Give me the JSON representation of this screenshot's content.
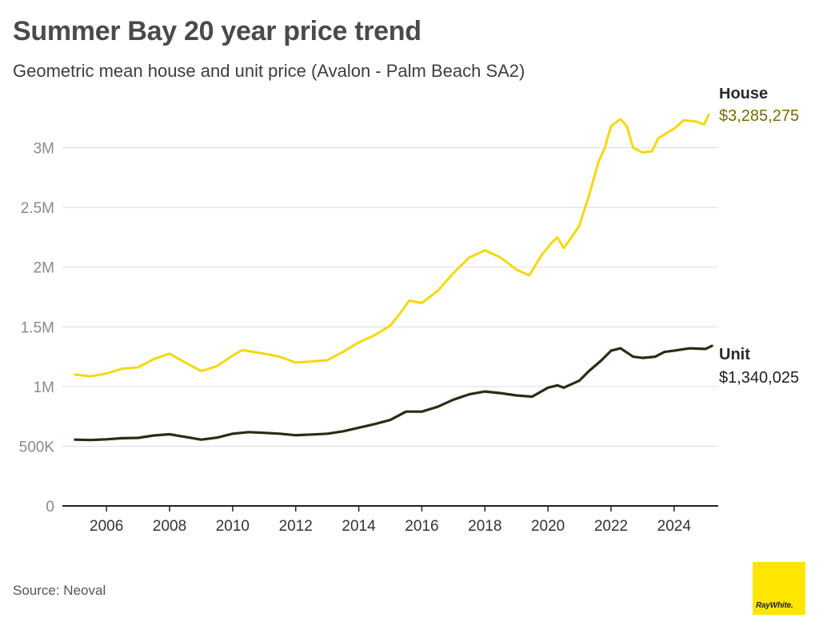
{
  "header": {
    "title": "Summer Bay 20 year price trend",
    "subtitle": "Geometric mean house and unit price (Avalon - Palm Beach SA2)"
  },
  "footer": {
    "source": "Source: Neoval",
    "logo_text": "RayWhite."
  },
  "colors": {
    "house": "#f5d90a",
    "unit": "#2e2a14",
    "house_value_text": "#7a6a00",
    "grid": "#dddddd",
    "axis": "#222222",
    "logo_bg": "#ffe600"
  },
  "chart_data": {
    "type": "line",
    "title": "Summer Bay 20 year price trend",
    "subtitle": "Geometric mean house and unit price (Avalon - Palm Beach SA2)",
    "xlim": [
      2004.6,
      2025.4
    ],
    "ylim": [
      0,
      3500000
    ],
    "x_ticks": [
      2006,
      2008,
      2010,
      2012,
      2014,
      2016,
      2018,
      2020,
      2022,
      2024
    ],
    "x_tick_labels": [
      "2006",
      "2008",
      "2010",
      "2012",
      "2014",
      "2016",
      "2018",
      "2020",
      "2022",
      "2024"
    ],
    "y_ticks": [
      0,
      500000,
      1000000,
      1500000,
      2000000,
      2500000,
      3000000
    ],
    "y_tick_labels": [
      "0",
      "500K",
      "1M",
      "1.5M",
      "2M",
      "2.5M",
      "3M"
    ],
    "grid": "horizontal",
    "series": [
      {
        "name": "House",
        "end_label": "$3,285,275",
        "color": "#f5d90a",
        "points": [
          [
            2005.0,
            1100000
          ],
          [
            2005.5,
            1085000
          ],
          [
            2006.0,
            1110000
          ],
          [
            2006.5,
            1150000
          ],
          [
            2007.0,
            1160000
          ],
          [
            2007.5,
            1230000
          ],
          [
            2008.0,
            1275000
          ],
          [
            2008.5,
            1200000
          ],
          [
            2009.0,
            1130000
          ],
          [
            2009.5,
            1170000
          ],
          [
            2010.0,
            1260000
          ],
          [
            2010.3,
            1305000
          ],
          [
            2010.8,
            1285000
          ],
          [
            2011.5,
            1250000
          ],
          [
            2012.0,
            1200000
          ],
          [
            2012.5,
            1210000
          ],
          [
            2013.0,
            1220000
          ],
          [
            2013.5,
            1290000
          ],
          [
            2014.0,
            1370000
          ],
          [
            2014.5,
            1430000
          ],
          [
            2015.0,
            1510000
          ],
          [
            2015.3,
            1610000
          ],
          [
            2015.6,
            1720000
          ],
          [
            2016.0,
            1700000
          ],
          [
            2016.5,
            1800000
          ],
          [
            2017.0,
            1950000
          ],
          [
            2017.5,
            2080000
          ],
          [
            2018.0,
            2140000
          ],
          [
            2018.5,
            2080000
          ],
          [
            2019.0,
            1980000
          ],
          [
            2019.4,
            1930000
          ],
          [
            2019.8,
            2100000
          ],
          [
            2020.1,
            2200000
          ],
          [
            2020.3,
            2250000
          ],
          [
            2020.5,
            2160000
          ],
          [
            2020.8,
            2270000
          ],
          [
            2021.0,
            2350000
          ],
          [
            2021.3,
            2600000
          ],
          [
            2021.6,
            2880000
          ],
          [
            2021.8,
            3000000
          ],
          [
            2022.0,
            3180000
          ],
          [
            2022.3,
            3240000
          ],
          [
            2022.5,
            3180000
          ],
          [
            2022.7,
            3000000
          ],
          [
            2023.0,
            2960000
          ],
          [
            2023.3,
            2970000
          ],
          [
            2023.5,
            3080000
          ],
          [
            2024.0,
            3160000
          ],
          [
            2024.3,
            3230000
          ],
          [
            2024.7,
            3220000
          ],
          [
            2024.95,
            3195000
          ],
          [
            2025.1,
            3280000
          ]
        ]
      },
      {
        "name": "Unit",
        "end_label": "$1,340,025",
        "color": "#2e2a14",
        "points": [
          [
            2005.0,
            555000
          ],
          [
            2005.5,
            552000
          ],
          [
            2006.0,
            558000
          ],
          [
            2006.5,
            567000
          ],
          [
            2007.0,
            570000
          ],
          [
            2007.5,
            590000
          ],
          [
            2008.0,
            600000
          ],
          [
            2008.5,
            578000
          ],
          [
            2009.0,
            555000
          ],
          [
            2009.5,
            572000
          ],
          [
            2010.0,
            605000
          ],
          [
            2010.5,
            618000
          ],
          [
            2011.0,
            612000
          ],
          [
            2011.5,
            605000
          ],
          [
            2012.0,
            592000
          ],
          [
            2012.5,
            598000
          ],
          [
            2013.0,
            605000
          ],
          [
            2013.5,
            625000
          ],
          [
            2014.0,
            655000
          ],
          [
            2014.5,
            685000
          ],
          [
            2015.0,
            720000
          ],
          [
            2015.5,
            790000
          ],
          [
            2016.0,
            790000
          ],
          [
            2016.5,
            830000
          ],
          [
            2017.0,
            890000
          ],
          [
            2017.5,
            935000
          ],
          [
            2018.0,
            958000
          ],
          [
            2018.5,
            945000
          ],
          [
            2019.0,
            925000
          ],
          [
            2019.5,
            915000
          ],
          [
            2020.0,
            990000
          ],
          [
            2020.3,
            1010000
          ],
          [
            2020.5,
            990000
          ],
          [
            2021.0,
            1050000
          ],
          [
            2021.3,
            1130000
          ],
          [
            2021.7,
            1220000
          ],
          [
            2022.0,
            1300000
          ],
          [
            2022.3,
            1320000
          ],
          [
            2022.7,
            1250000
          ],
          [
            2023.0,
            1240000
          ],
          [
            2023.4,
            1250000
          ],
          [
            2023.7,
            1290000
          ],
          [
            2024.0,
            1300000
          ],
          [
            2024.5,
            1320000
          ],
          [
            2025.0,
            1315000
          ],
          [
            2025.2,
            1340000
          ]
        ]
      }
    ]
  }
}
